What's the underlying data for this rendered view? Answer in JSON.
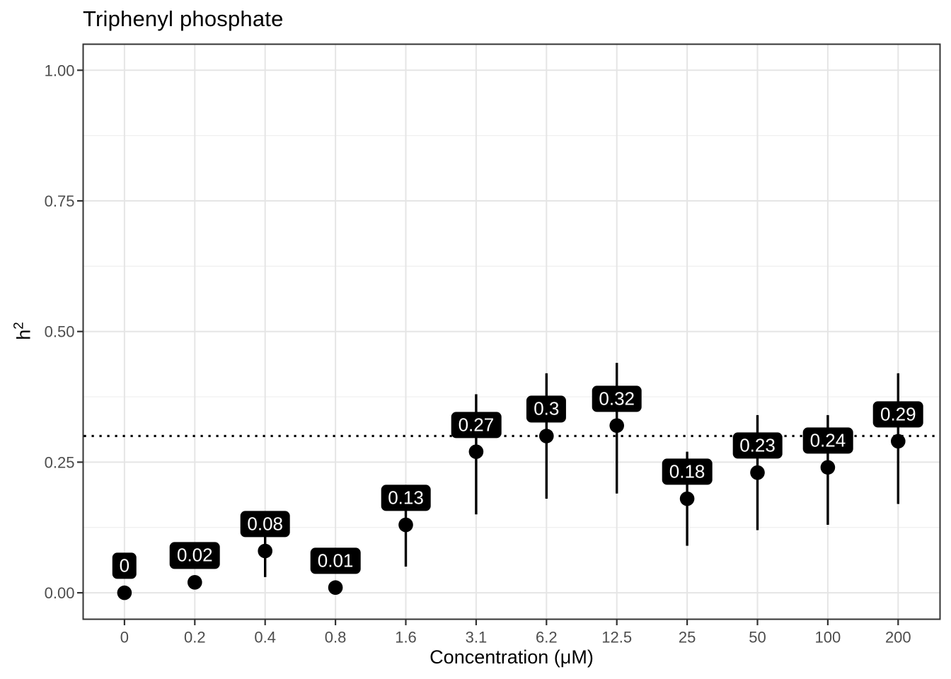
{
  "chart_data": {
    "type": "pointrange",
    "title": "Triphenyl phosphate",
    "xlabel": "Concentration (μM)",
    "ylabel_base": "h",
    "ylabel_exponent": "2",
    "categories": [
      "0",
      "0.2",
      "0.4",
      "0.8",
      "1.6",
      "3.1",
      "6.2",
      "12.5",
      "25",
      "50",
      "100",
      "200"
    ],
    "values": [
      0,
      0.02,
      0.08,
      0.01,
      0.13,
      0.27,
      0.3,
      0.32,
      0.18,
      0.23,
      0.24,
      0.29
    ],
    "point_labels": [
      "0",
      "0.02",
      "0.08",
      "0.01",
      "0.13",
      "0.27",
      "0.3",
      "0.32",
      "0.18",
      "0.23",
      "0.24",
      "0.29"
    ],
    "ci_low": [
      0.0,
      0.02,
      0.03,
      0.01,
      0.05,
      0.15,
      0.18,
      0.19,
      0.09,
      0.12,
      0.13,
      0.17
    ],
    "ci_high": [
      0.0,
      0.02,
      0.13,
      0.01,
      0.2,
      0.38,
      0.42,
      0.44,
      0.27,
      0.34,
      0.34,
      0.42
    ],
    "reference_line": {
      "y": 0.3,
      "style": "dotted"
    },
    "y_ticks": {
      "values": [
        1.0,
        0.75,
        0.5,
        0.25,
        0.0
      ],
      "labels": [
        "1.00",
        "0.75",
        "0.50",
        "0.25",
        "0.00"
      ]
    },
    "y_minor_gridlines": [
      0.875,
      0.625,
      0.375,
      0.125
    ],
    "ylim": [
      -0.05,
      1.05
    ],
    "grid": "major-xy + minor-y",
    "legend": "none",
    "colors": {
      "point": "#000000",
      "error_bar": "#000000",
      "reference_line": "#000000",
      "label_background": "#000000",
      "label_text": "#ffffff",
      "grid_major": "#e5e5e5",
      "grid_minor": "#efefef",
      "panel_border": "#333333",
      "tick_mark": "#333333",
      "tick_text": "#4d4d4d",
      "title_text": "#000000",
      "background": "#ffffff"
    }
  }
}
